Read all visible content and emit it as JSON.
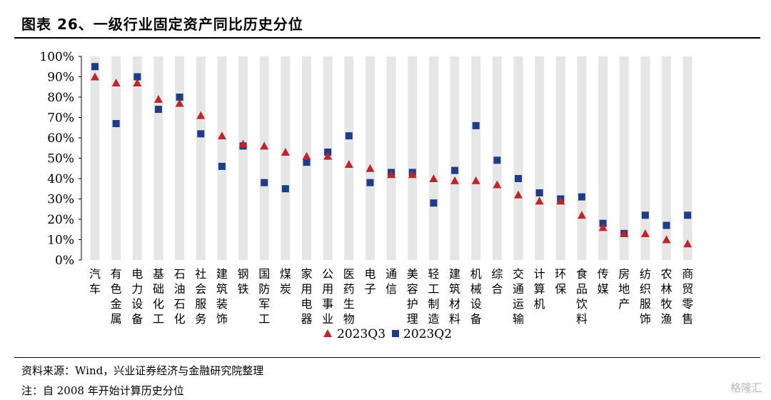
{
  "title": "图表 26、一级行业固定资产同比历史分位",
  "footer": {
    "source": "资料来源：Wind，兴业证券经济与金融研究院整理",
    "note": "注：自 2008 年开始计算历史分位"
  },
  "watermark": "格隆汇",
  "colors": {
    "q3": "#c0252b",
    "q2": "#1f3c88",
    "band": "#e6e6e6"
  },
  "chart_data": {
    "type": "scatter",
    "title": "",
    "xlabel": "",
    "ylabel": "",
    "ylim": [
      0,
      100
    ],
    "y_ticks": [
      0,
      10,
      20,
      30,
      40,
      50,
      60,
      70,
      80,
      90,
      100
    ],
    "y_tick_labels": [
      "0%",
      "10%",
      "20%",
      "30%",
      "40%",
      "50%",
      "60%",
      "70%",
      "80%",
      "90%",
      "100%"
    ],
    "legend_position": "bottom",
    "categories": [
      "汽车",
      "有色金属",
      "电力设备",
      "基础化工",
      "石油石化",
      "社会服务",
      "建筑装饰",
      "钢铁",
      "国防军工",
      "煤炭",
      "家用电器",
      "公用事业",
      "医药生物",
      "电子",
      "通信",
      "美容护理",
      "轻工制造",
      "建筑材料",
      "机械设备",
      "综合",
      "交通运输",
      "计算机",
      "环保",
      "食品饮料",
      "传媒",
      "房地产",
      "纺织服饰",
      "农林牧渔",
      "商贸零售"
    ],
    "series": [
      {
        "name": "2023Q3",
        "marker": "triangle",
        "values": [
          90,
          87,
          87,
          79,
          77,
          71,
          61,
          57,
          56,
          53,
          51,
          51,
          47,
          45,
          42,
          42,
          40,
          39,
          39,
          37,
          32,
          29,
          29,
          22,
          16,
          13,
          13,
          10,
          8
        ]
      },
      {
        "name": "2023Q2",
        "marker": "square",
        "values": [
          95,
          67,
          90,
          74,
          80,
          62,
          46,
          56,
          38,
          35,
          48,
          53,
          61,
          38,
          43,
          43,
          28,
          44,
          66,
          49,
          40,
          33,
          30,
          31,
          18,
          13,
          22,
          17,
          22
        ]
      }
    ]
  }
}
